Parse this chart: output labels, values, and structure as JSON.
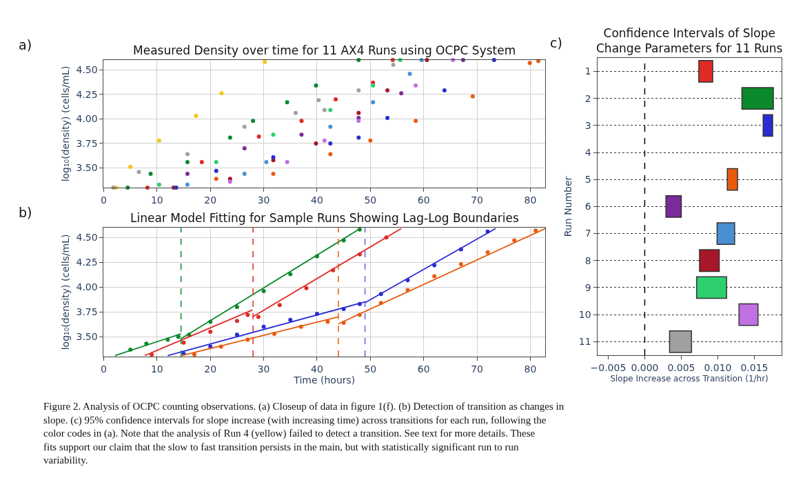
{
  "chart_data": [
    {
      "type": "scatter",
      "title": "Measured Density over time for 11 AX4 Runs using OCPC System",
      "ylabel": "log₁₀(density) (cells/mL)",
      "annotations": [
        "a)",
        "Figure 2. Analysis of OCPC counting observations. (a) Closeup of data in figure 1(f). (b) Detection of transition as changes in slope. (c) 95% confidence intervals for slope increase (with increasing time) across transitions for each run, following the color codes in (a). Note that the analysis of Run 4 (yellow) failed to detect a transition. See text for more details. These fits support our claim that the slow to fast transition persists in the main, but with statistically significant run to run variability."
      ],
      "xlim": [
        0,
        82.8
      ],
      "xticks": [
        0,
        10,
        20,
        30,
        40,
        50,
        60,
        70,
        80
      ],
      "ylim": [
        3.3,
        4.6
      ],
      "yticks": [
        {
          "value": 3.5,
          "label": "3.50"
        },
        {
          "value": 3.75,
          "label": "3.75"
        },
        {
          "value": 4.0,
          "label": "4.00"
        },
        {
          "value": 4.25,
          "label": "4.25"
        },
        {
          "value": 4.5,
          "label": "4.50"
        }
      ],
      "grid": true,
      "marker": "circle",
      "series": [
        {
          "color": "#f5c518",
          "x": [
            2.3,
            5,
            10.4,
            17.3,
            22.1,
            30.2
          ],
          "values": [
            3.3,
            3.51,
            3.78,
            4.03,
            4.26,
            4.58
          ]
        },
        {
          "color": "#0a8a2a",
          "x": [
            4.5,
            8.8,
            15.7,
            23.7,
            28,
            34.4,
            39.8,
            47.8
          ],
          "values": [
            3.3,
            3.44,
            3.56,
            3.81,
            3.98,
            4.17,
            4.34,
            4.6
          ]
        },
        {
          "color": "#a0a0a0",
          "x": [
            1.8,
            6.6,
            15.7,
            26.4,
            36,
            40.3,
            41.4,
            47.8,
            54.3
          ],
          "values": [
            3.3,
            3.46,
            3.64,
            3.92,
            4.06,
            4.19,
            4.09,
            4.29,
            4.55
          ]
        },
        {
          "color": "#e02a25",
          "x": [
            8.2,
            18.4,
            29.1,
            37.1,
            43.5,
            50.5,
            54.2
          ],
          "values": [
            3.3,
            3.56,
            3.82,
            3.98,
            4.2,
            4.37,
            4.6
          ]
        },
        {
          "color": "#2ecf6e",
          "x": [
            10.4,
            21.1,
            31.8,
            42.5,
            50.5,
            55.6
          ],
          "values": [
            3.33,
            3.56,
            3.84,
            4.09,
            4.34,
            4.6
          ]
        },
        {
          "color": "#4a8fd4",
          "x": [
            15.7,
            26.4,
            30.5,
            42.5,
            50.5,
            57.4,
            59.6
          ],
          "values": [
            3.33,
            3.44,
            3.56,
            3.92,
            4.17,
            4.46,
            4.6
          ]
        },
        {
          "color": "#a8162a",
          "x": [
            13.1,
            23.7,
            31.8,
            39.8,
            47.8,
            53.2,
            60.6
          ],
          "values": [
            3.3,
            3.39,
            3.58,
            3.75,
            4.06,
            4.29,
            4.6
          ]
        },
        {
          "color": "#7b2a9a",
          "x": [
            15.7,
            26.4,
            37.1,
            47.8,
            55.8,
            67.4
          ],
          "values": [
            3.44,
            3.7,
            3.84,
            4.01,
            4.26,
            4.6
          ]
        },
        {
          "color": "#c070e0",
          "x": [
            23.7,
            34.4,
            41.4,
            47.8,
            58.5,
            65.5
          ],
          "values": [
            3.36,
            3.56,
            3.78,
            3.98,
            4.34,
            4.6
          ]
        },
        {
          "color": "#2b2bd6",
          "x": [
            13.6,
            21.1,
            31.8,
            42.5,
            47.8,
            53.2,
            63.9,
            73.2
          ],
          "values": [
            3.3,
            3.47,
            3.61,
            3.75,
            3.81,
            4.01,
            4.29,
            4.6
          ]
        },
        {
          "color": "#e85b0e",
          "x": [
            21.1,
            31.8,
            42.5,
            50,
            58.5,
            69.2,
            79.9,
            81.5
          ],
          "values": [
            3.39,
            3.44,
            3.64,
            3.78,
            3.98,
            4.23,
            4.57,
            4.59
          ]
        }
      ]
    },
    {
      "type": "scatter",
      "title": "Linear Model Fitting for Sample Runs Showing Lag-Log Boundaries",
      "xlabel": "Time (hours)",
      "ylabel": "log₁₀(density) (cells/mL)",
      "annotations": [
        "b)"
      ],
      "xlim": [
        0,
        82.8
      ],
      "xticks": [
        0,
        10,
        20,
        30,
        40,
        50,
        60,
        70,
        80
      ],
      "ylim": [
        3.3,
        4.6
      ],
      "yticks": [
        {
          "value": 3.5,
          "label": "3.50"
        },
        {
          "value": 3.75,
          "label": "3.75"
        },
        {
          "value": 4.0,
          "label": "4.00"
        },
        {
          "value": 4.25,
          "label": "4.25"
        },
        {
          "value": 4.5,
          "label": "4.50"
        }
      ],
      "grid": true,
      "marker": "circle",
      "series": [
        {
          "color": "#0a8a2a",
          "x": [
            5,
            8,
            12,
            14,
            16,
            20,
            25,
            30,
            35,
            40,
            45,
            48
          ],
          "values": [
            3.37,
            3.43,
            3.47,
            3.5,
            3.52,
            3.65,
            3.8,
            3.96,
            4.13,
            4.31,
            4.47,
            4.58
          ]
        },
        {
          "color": "#e02a25",
          "x": [
            9,
            15,
            20,
            25,
            27,
            29,
            33,
            38,
            43,
            48,
            53
          ],
          "values": [
            3.32,
            3.44,
            3.55,
            3.66,
            3.72,
            3.7,
            3.82,
            3.99,
            4.17,
            4.33,
            4.5
          ]
        },
        {
          "color": "#2b2bd6",
          "x": [
            15,
            20,
            25,
            30,
            35,
            40,
            45,
            48,
            52,
            57,
            62,
            67,
            72
          ],
          "values": [
            3.33,
            3.4,
            3.52,
            3.6,
            3.67,
            3.73,
            3.78,
            3.83,
            3.93,
            4.07,
            4.22,
            4.38,
            4.56
          ]
        },
        {
          "color": "#e85b0e",
          "x": [
            17,
            22,
            27,
            32,
            37,
            42,
            45,
            48,
            52,
            57,
            62,
            67,
            72,
            77,
            81
          ],
          "values": [
            3.32,
            3.4,
            3.47,
            3.53,
            3.6,
            3.65,
            3.64,
            3.72,
            3.84,
            3.97,
            4.11,
            4.23,
            4.35,
            4.47,
            4.57
          ]
        },
        {
          "type": "line",
          "marker": "none",
          "color": "#0a8a2a",
          "x": [
            2.1,
            14.5,
            null,
            14.5,
            48.1
          ],
          "values": [
            3.31,
            3.53,
            null,
            3.48,
            4.59
          ]
        },
        {
          "type": "line",
          "marker": "none",
          "color": "#e02a25",
          "x": [
            7.7,
            27.9,
            null,
            27.9,
            55.8
          ],
          "values": [
            3.31,
            3.77,
            null,
            3.7,
            4.59
          ]
        },
        {
          "type": "line",
          "marker": "none",
          "color": "#2b2bd6",
          "x": [
            12,
            48.9,
            null,
            48.9,
            73.5
          ],
          "values": [
            3.31,
            3.85,
            null,
            3.84,
            4.59
          ]
        },
        {
          "type": "line",
          "marker": "none",
          "color": "#e85b0e",
          "x": [
            14.6,
            44,
            null,
            44,
            82.8
          ],
          "values": [
            3.31,
            3.7,
            null,
            3.63,
            4.59
          ]
        }
      ],
      "ref_lines": [
        {
          "axis": "x",
          "value": 14.5,
          "color": "#0a8a2a",
          "line_style": "dashed"
        },
        {
          "axis": "x",
          "value": 28,
          "color": "#e02a25",
          "line_style": "dashed"
        },
        {
          "axis": "x",
          "value": 44,
          "color": "#e85b0e",
          "line_style": "dashed"
        },
        {
          "axis": "x",
          "value": 49,
          "color": "#6060e8",
          "line_style": "dashed"
        }
      ]
    },
    {
      "type": "bar",
      "orientation": "horizontal",
      "title": "Confidence Intervals of Slope Change Parameters for 11 Runs",
      "xlabel": "Slope Increase across Transition (1/hr)",
      "ylabel": "Run Number",
      "annotations": [
        "c)"
      ],
      "categories": [
        "1",
        "2",
        "3",
        "4",
        "5",
        "6",
        "7",
        "8",
        "9",
        "10",
        "11"
      ],
      "base": [
        0.0074,
        0.0133,
        0.0162,
        null,
        0.0113,
        0.0029,
        0.0099,
        0.0075,
        0.0071,
        0.0129,
        0.0034
      ],
      "values": [
        0.0019,
        0.0043,
        0.0013,
        null,
        0.0014,
        0.0021,
        0.0024,
        0.0027,
        0.0041,
        0.0026,
        0.003
      ],
      "colors": [
        "#e02a25",
        "#0a8a2a",
        "#2b2bd6",
        "#f5c518",
        "#e85b0e",
        "#7b2a9a",
        "#4a8fd4",
        "#a8162a",
        "#2ecf6e",
        "#c070e0",
        "#a0a0a0"
      ],
      "xlim": [
        -0.0065,
        0.0187
      ],
      "xticks": [
        {
          "value": -0.005,
          "label": "−0.005"
        },
        {
          "value": 0,
          "label": "0.000"
        },
        {
          "value": 0.005,
          "label": "0.005"
        },
        {
          "value": 0.01,
          "label": "0.010"
        },
        {
          "value": 0.015,
          "label": "0.015"
        }
      ],
      "grid": "y",
      "ref_lines": [
        {
          "axis": "x",
          "value": 0,
          "color": "#000000",
          "line_style": "dashed"
        }
      ]
    }
  ]
}
